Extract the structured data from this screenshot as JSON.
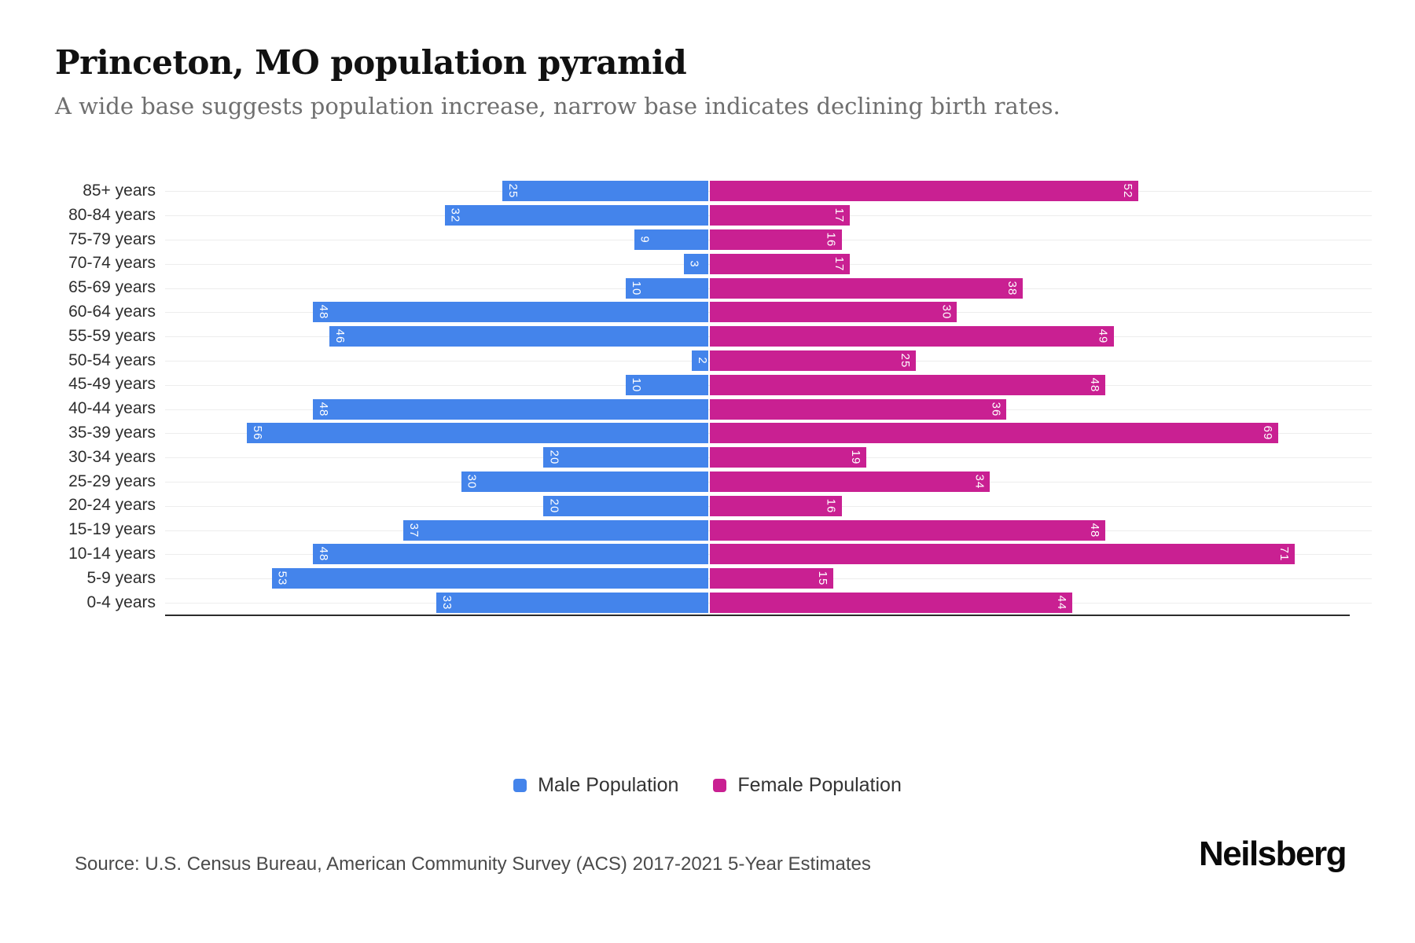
{
  "header": {
    "title": "Princeton, MO population pyramid",
    "subtitle": "A wide base suggests population increase, narrow base indicates declining birth rates."
  },
  "chart_data": {
    "type": "bar",
    "variant": "population-pyramid",
    "orientation": "horizontal",
    "categories": [
      "85+ years",
      "80-84 years",
      "75-79 years",
      "70-74 years",
      "65-69 years",
      "60-64 years",
      "55-59 years",
      "50-54 years",
      "45-49 years",
      "40-44 years",
      "35-39 years",
      "30-34 years",
      "25-29 years",
      "20-24 years",
      "15-19 years",
      "10-14 years",
      "5-9 years",
      "0-4 years"
    ],
    "series": [
      {
        "name": "Male Population",
        "color": "#4484EB",
        "values": [
          25,
          32,
          9,
          3,
          10,
          48,
          46,
          2,
          10,
          48,
          56,
          20,
          30,
          20,
          37,
          48,
          53,
          33
        ]
      },
      {
        "name": "Female Population",
        "color": "#C92092",
        "values": [
          52,
          17,
          16,
          17,
          38,
          30,
          49,
          25,
          48,
          36,
          69,
          19,
          34,
          16,
          48,
          71,
          15,
          44
        ]
      }
    ],
    "male_axis_max": 66,
    "female_axis_max": 80.5,
    "grid": "on",
    "legend_position": "bottom",
    "value_labels": "inside-end, rotated 90deg, white"
  },
  "legend": {
    "male_label": "Male Population",
    "female_label": "Female Population"
  },
  "footer": {
    "source": "Source: U.S. Census Bureau, American Community Survey (ACS) 2017-2021 5-Year Estimates",
    "brand": "Neilsberg"
  }
}
